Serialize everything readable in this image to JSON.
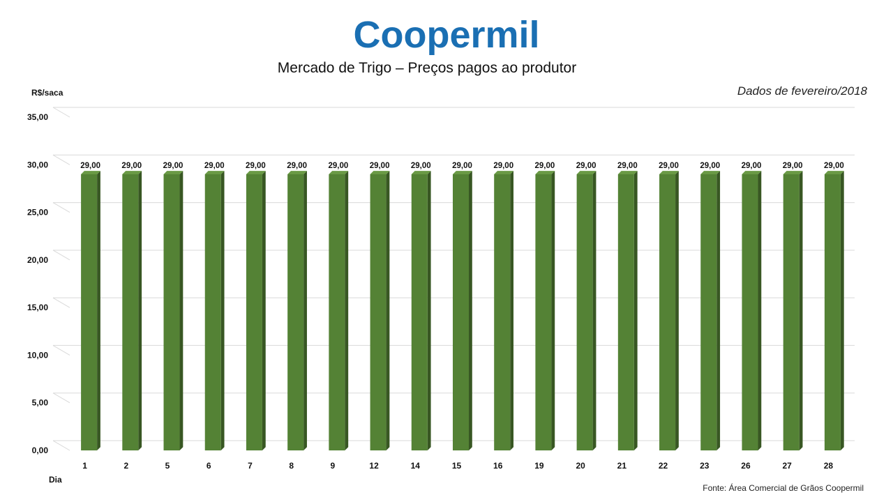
{
  "logo": {
    "text": "Coopermil",
    "color": "#1a6fb3"
  },
  "title": "Mercado de Trigo – Preços pagos ao produtor",
  "period_note": "Dados de fevereiro/2018",
  "source_note": "Fonte: Área Comercial de Grãos Coopermil",
  "colors": {
    "bar_front": "#548235",
    "bar_side": "#385723",
    "bar_top": "#6a9a45",
    "grid": "#d9d9d9"
  },
  "chart_data": {
    "type": "bar",
    "ylabel": "R$/saca",
    "xlabel": "Dia",
    "ylim": [
      0,
      35
    ],
    "yticks": [
      "0,00",
      "5,00",
      "10,00",
      "15,00",
      "20,00",
      "25,00",
      "30,00",
      "35,00"
    ],
    "ytick_values": [
      0,
      5,
      10,
      15,
      20,
      25,
      30,
      35
    ],
    "grid": true,
    "categories": [
      "1",
      "2",
      "5",
      "6",
      "7",
      "8",
      "9",
      "12",
      "14",
      "15",
      "16",
      "19",
      "20",
      "21",
      "22",
      "23",
      "26",
      "27",
      "28"
    ],
    "values": [
      29,
      29,
      29,
      29,
      29,
      29,
      29,
      29,
      29,
      29,
      29,
      29,
      29,
      29,
      29,
      29,
      29,
      29,
      29
    ],
    "value_labels": [
      "29,00",
      "29,00",
      "29,00",
      "29,00",
      "29,00",
      "29,00",
      "29,00",
      "29,00",
      "29,00",
      "29,00",
      "29,00",
      "29,00",
      "29,00",
      "29,00",
      "29,00",
      "29,00",
      "29,00",
      "29,00",
      "29,00"
    ]
  }
}
